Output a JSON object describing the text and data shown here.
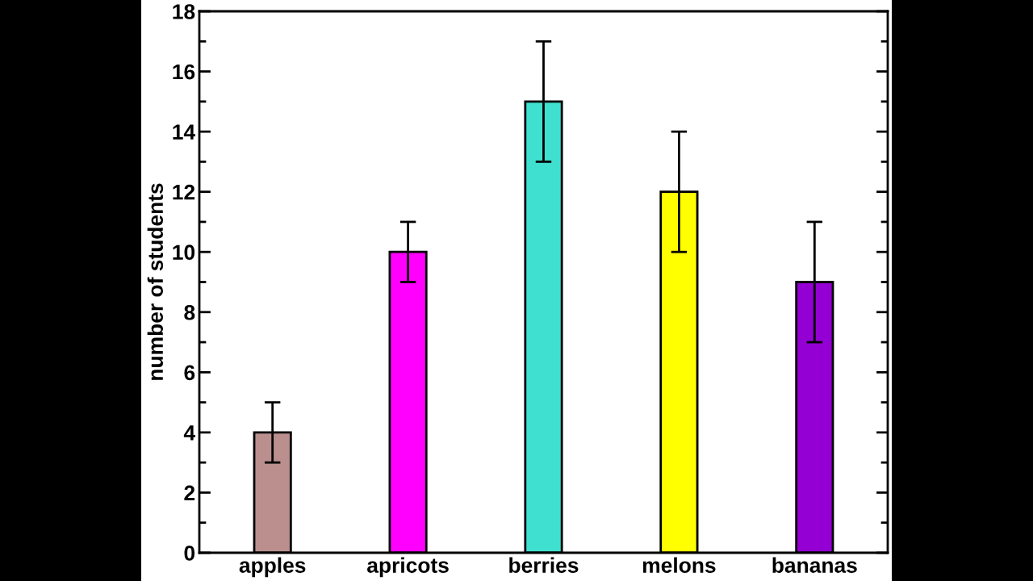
{
  "chart_data": {
    "type": "bar",
    "ylabel": "number of students",
    "categories": [
      "apples",
      "apricots",
      "berries",
      "melons",
      "bananas"
    ],
    "values": [
      4,
      10,
      15,
      12,
      9
    ],
    "errors": [
      1,
      1,
      2,
      2,
      2
    ],
    "colors": [
      "#bc8f8f",
      "#ff00ff",
      "#40e0d0",
      "#ffff00",
      "#9400d3"
    ],
    "ylim": [
      0,
      18
    ],
    "yticks": [
      0,
      2,
      4,
      6,
      8,
      10,
      12,
      14,
      16,
      18
    ],
    "grid": false,
    "legend": false
  }
}
